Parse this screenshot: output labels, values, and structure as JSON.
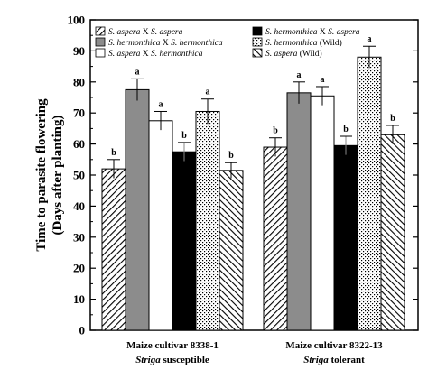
{
  "chart_data": {
    "type": "bar",
    "ylabel_lines": [
      "Time to parasite flowering",
      "(Days after planting)"
    ],
    "ylim": [
      0,
      100
    ],
    "yticks": [
      0,
      10,
      20,
      30,
      40,
      50,
      60,
      70,
      80,
      90,
      100
    ],
    "grid": false,
    "legend_position": "top",
    "categories": [
      {
        "line1": "Maize cultivar 8338-1",
        "line2_italic": "Striga",
        "line2_rest": " susceptible"
      },
      {
        "line1": "Maize cultivar 8322-13",
        "line2_italic": "Striga",
        "line2_rest": " tolerant"
      }
    ],
    "series": [
      {
        "name_parts": [
          {
            "t": "S. aspera",
            "i": true
          },
          {
            "t": " X ",
            "i": false
          },
          {
            "t": "S. aspera",
            "i": true
          }
        ],
        "pattern": "diag",
        "values": [
          52,
          59
        ],
        "errors": [
          3,
          3
        ],
        "sig": [
          "b",
          "b"
        ]
      },
      {
        "name_parts": [
          {
            "t": "S. hermonthica",
            "i": true
          },
          {
            "t": " X ",
            "i": false
          },
          {
            "t": "S. hermonthica",
            "i": true
          }
        ],
        "pattern": "gray",
        "values": [
          77.5,
          76.5
        ],
        "errors": [
          3.5,
          3.5
        ],
        "sig": [
          "a",
          "a"
        ]
      },
      {
        "name_parts": [
          {
            "t": "S. aspera",
            "i": true
          },
          {
            "t": " X ",
            "i": false
          },
          {
            "t": "S. hermonthica",
            "i": true
          }
        ],
        "pattern": "white",
        "values": [
          67.5,
          75.5
        ],
        "errors": [
          3,
          3
        ],
        "sig": [
          "a",
          "a"
        ]
      },
      {
        "name_parts": [
          {
            "t": "S. hermonthica",
            "i": true
          },
          {
            "t": " X ",
            "i": false
          },
          {
            "t": "S. aspera",
            "i": true
          }
        ],
        "pattern": "black",
        "values": [
          57.5,
          59.5
        ],
        "errors": [
          3,
          3
        ],
        "sig": [
          "b",
          "b"
        ]
      },
      {
        "name_parts": [
          {
            "t": "S. hermonthica",
            "i": true
          },
          {
            "t": " (Wild)",
            "i": false
          }
        ],
        "pattern": "dots",
        "values": [
          70.5,
          88
        ],
        "errors": [
          4,
          3.5
        ],
        "sig": [
          "a",
          "a"
        ]
      },
      {
        "name_parts": [
          {
            "t": "S. aspera",
            "i": true
          },
          {
            "t": " (Wild)",
            "i": false
          }
        ],
        "pattern": "diag2",
        "values": [
          51.5,
          63
        ],
        "errors": [
          2.5,
          3
        ],
        "sig": [
          "b",
          "b"
        ]
      }
    ]
  }
}
